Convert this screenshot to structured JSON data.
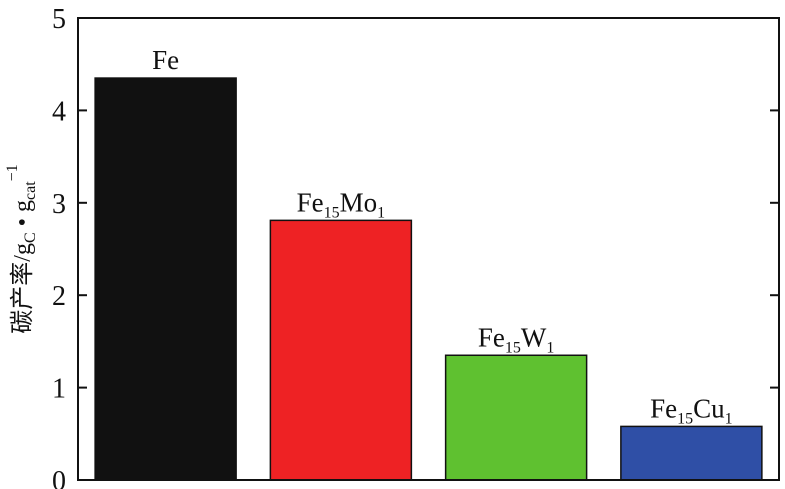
{
  "chart_data": {
    "type": "bar",
    "categories": [
      "Fe",
      "Fe15Mo1",
      "Fe15W1",
      "Fe15Cu1"
    ],
    "category_labels": [
      [
        {
          "t": "Fe",
          "s": ""
        }
      ],
      [
        {
          "t": "Fe",
          "s": ""
        },
        {
          "t": "15",
          "s": "sub"
        },
        {
          "t": "Mo",
          "s": ""
        },
        {
          "t": "1",
          "s": "sub"
        }
      ],
      [
        {
          "t": "Fe",
          "s": ""
        },
        {
          "t": "15",
          "s": "sub"
        },
        {
          "t": "W",
          "s": ""
        },
        {
          "t": "1",
          "s": "sub"
        }
      ],
      [
        {
          "t": "Fe",
          "s": ""
        },
        {
          "t": "15",
          "s": "sub"
        },
        {
          "t": "Cu",
          "s": ""
        },
        {
          "t": "1",
          "s": "sub"
        }
      ]
    ],
    "values": [
      4.35,
      2.81,
      1.35,
      0.58
    ],
    "colors": [
      "#111111",
      "#ee2224",
      "#5fc130",
      "#2f4fa6"
    ],
    "ylabel": {
      "prefix": "碳产率/g",
      "sub1": "C",
      "middle": " • g",
      "sub2": "cat",
      "sup": "−1"
    },
    "ylim": [
      0,
      5
    ],
    "yticks": [
      0,
      1,
      2,
      3,
      4,
      5
    ],
    "grid": false
  }
}
